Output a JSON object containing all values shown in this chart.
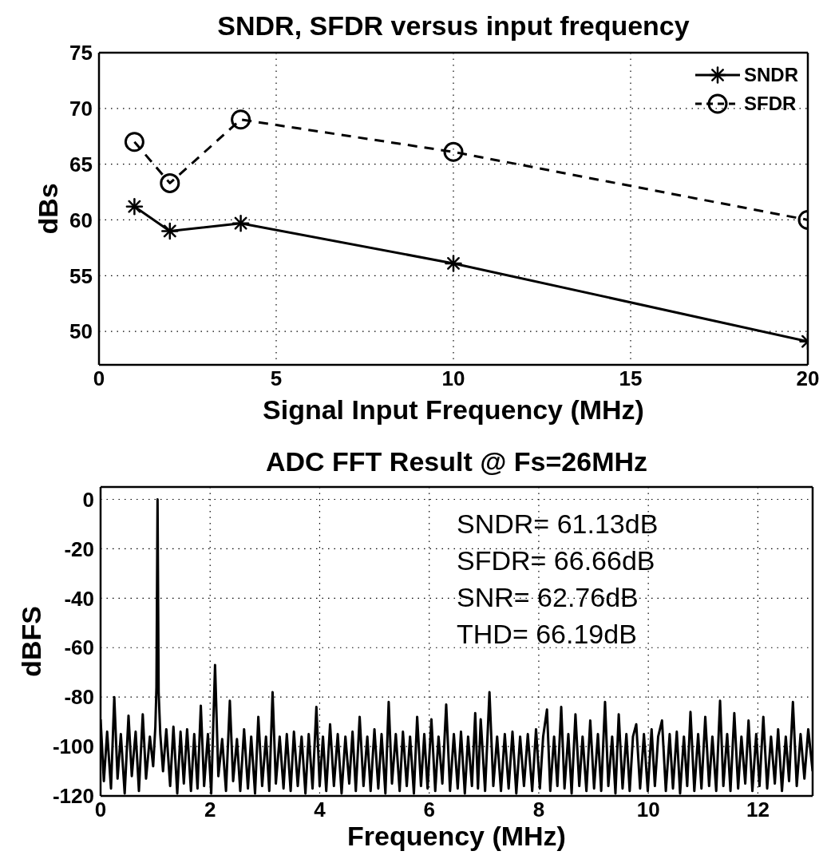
{
  "chart_data": [
    {
      "type": "line",
      "title": "SNDR, SFDR versus input frequency",
      "xlabel": "Signal Input Frequency (MHz)",
      "ylabel": "dBs",
      "x": [
        1,
        2,
        4,
        10,
        20
      ],
      "series": [
        {
          "name": "SNDR",
          "color": "#000000",
          "values": [
            61.2,
            59.0,
            59.7,
            56.1,
            49.1
          ],
          "marker": "cross",
          "line_style": "solid"
        },
        {
          "name": "SFDR",
          "color": "#000000",
          "values": [
            67.0,
            63.3,
            69.0,
            66.1,
            60.0
          ],
          "marker": "circle",
          "line_style": "dashed"
        }
      ],
      "xlim": [
        0,
        20
      ],
      "xticks": [
        0,
        5,
        10,
        15,
        20
      ],
      "ylim": [
        47,
        75
      ],
      "yticks": [
        50,
        55,
        60,
        65,
        70,
        75
      ],
      "grid": true,
      "legend": "top right"
    },
    {
      "type": "line",
      "title": "ADC FFT Result @ Fs=26MHz",
      "xlabel": "Frequency (MHz)",
      "ylabel": "dBFS",
      "x": [
        0,
        0.06,
        0.12,
        0.19,
        0.25,
        0.31,
        0.37,
        0.44,
        0.51,
        0.57,
        0.64,
        0.7,
        0.77,
        0.83,
        0.9,
        0.96,
        1,
        1.02,
        1.04,
        1.06,
        1.09,
        1.14,
        1.2,
        1.27,
        1.33,
        1.4,
        1.46,
        1.52,
        1.58,
        1.65,
        1.71,
        1.77,
        1.83,
        1.89,
        1.96,
        2.02,
        2.09,
        2.15,
        2.22,
        2.29,
        2.36,
        2.42,
        2.49,
        2.55,
        2.62,
        2.69,
        2.75,
        2.82,
        2.88,
        2.95,
        3.02,
        3.08,
        3.14,
        3.2,
        3.27,
        3.34,
        3.4,
        3.47,
        3.53,
        3.6,
        3.67,
        3.74,
        3.8,
        3.87,
        3.94,
        4,
        4.06,
        4.12,
        4.19,
        4.26,
        4.33,
        4.4,
        4.47,
        4.54,
        4.6,
        4.66,
        4.73,
        4.8,
        4.87,
        4.93,
        5,
        5.07,
        5.13,
        5.2,
        5.26,
        5.32,
        5.39,
        5.46,
        5.52,
        5.59,
        5.65,
        5.72,
        5.78,
        5.85,
        5.91,
        5.97,
        6.04,
        6.11,
        6.17,
        6.24,
        6.31,
        6.38,
        6.45,
        6.52,
        6.58,
        6.65,
        6.71,
        6.78,
        6.84,
        6.89,
        6.94,
        7.02,
        7.1,
        7.17,
        7.24,
        7.31,
        7.38,
        7.45,
        7.52,
        7.59,
        7.66,
        7.73,
        7.8,
        7.88,
        7.95,
        8.02,
        8.08,
        8.15,
        8.21,
        8.28,
        8.34,
        8.41,
        8.47,
        8.54,
        8.6,
        8.67,
        8.74,
        8.8,
        8.87,
        8.94,
        9.01,
        9.08,
        9.14,
        9.21,
        9.27,
        9.34,
        9.4,
        9.46,
        9.53,
        9.6,
        9.66,
        9.72,
        9.78,
        9.85,
        9.92,
        9.99,
        10.06,
        10.12,
        10.18,
        10.25,
        10.32,
        10.39,
        10.45,
        10.52,
        10.58,
        10.65,
        10.71,
        10.77,
        10.84,
        10.91,
        10.97,
        11.04,
        11.11,
        11.17,
        11.24,
        11.31,
        11.37,
        11.44,
        11.5,
        11.57,
        11.64,
        11.7,
        11.77,
        11.83,
        11.9,
        11.97,
        12.03,
        12.1,
        12.17,
        12.24,
        12.31,
        12.37,
        12.44,
        12.51,
        12.57,
        12.64,
        12.71,
        12.78,
        12.85,
        12.92,
        13
      ],
      "series": [
        {
          "color": "#000000",
          "line_style": "solid",
          "values": [
            -89,
            -114,
            -94,
            -117,
            -80,
            -113,
            -95,
            -119,
            -87.5,
            -112,
            -94,
            -118,
            -87,
            -113,
            -96,
            -108,
            -92,
            -76,
            0,
            -78,
            -95,
            -110,
            -93,
            -116,
            -92,
            -119,
            -94,
            -115,
            -93,
            -118,
            -95,
            -117,
            -83.5,
            -116,
            -95,
            -119,
            -67,
            -112,
            -97,
            -118,
            -81.5,
            -114,
            -97,
            -118,
            -93,
            -117,
            -96,
            -119,
            -88,
            -116,
            -96,
            -118,
            -78,
            -115,
            -96,
            -117,
            -95,
            -118,
            -94,
            -116,
            -96,
            -119,
            -95,
            -117,
            -84,
            -116,
            -96,
            -118,
            -91,
            -116,
            -95,
            -119,
            -96,
            -115,
            -94,
            -118,
            -88,
            -116,
            -96,
            -118,
            -93,
            -117,
            -95,
            -119,
            -82,
            -115,
            -95,
            -118,
            -94,
            -116,
            -96,
            -119,
            -88,
            -116,
            -95,
            -117,
            -89,
            -118,
            -96,
            -115,
            -83,
            -118,
            -95,
            -117,
            -94,
            -119,
            -96,
            -116,
            -86.5,
            -117,
            -89,
            -118,
            -78,
            -116,
            -96,
            -118,
            -95,
            -117,
            -94,
            -119,
            -96,
            -116,
            -95,
            -118,
            -93,
            -117,
            -96,
            -85,
            -118,
            -96,
            -116,
            -84,
            -117,
            -95,
            -119,
            -87,
            -116,
            -96,
            -118,
            -89.5,
            -117,
            -95,
            -118,
            -82,
            -116,
            -96,
            -119,
            -87,
            -117,
            -95,
            -118,
            -96,
            -91,
            -117,
            -95,
            -118,
            -93,
            -116,
            -96,
            -89.5,
            -118,
            -95,
            -117,
            -94,
            -119,
            -96,
            -116,
            -86,
            -118,
            -95,
            -117,
            -88,
            -116,
            -96,
            -118,
            -81.5,
            -116,
            -95,
            -118,
            -86.5,
            -117,
            -96,
            -115,
            -89.5,
            -118,
            -95,
            -116,
            -88,
            -117,
            -96,
            -115,
            -93,
            -118,
            -96,
            -114,
            -82,
            -116,
            -95,
            -113,
            -93,
            -110
          ]
        }
      ],
      "xlim": [
        0,
        13
      ],
      "xticks": [
        0,
        2,
        4,
        6,
        8,
        10,
        12
      ],
      "ylim": [
        -120,
        5
      ],
      "yticks": [
        -120,
        -100,
        -80,
        -60,
        -40,
        -20,
        0
      ],
      "grid": true,
      "annotations": [
        "SNDR= 61.13dB",
        "SFDR= 66.66dB",
        "SNR= 62.76dB",
        "THD= 66.19dB"
      ]
    }
  ]
}
